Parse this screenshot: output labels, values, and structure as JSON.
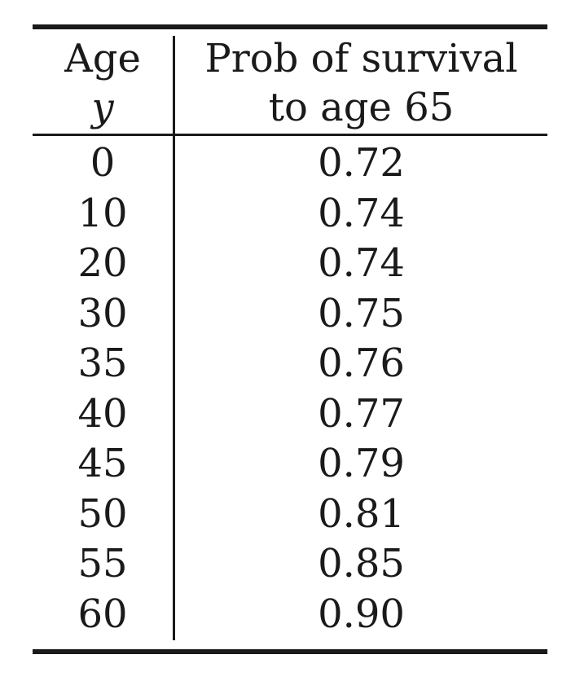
{
  "table": {
    "header": {
      "age_line1": "Age",
      "age_line2": "y",
      "prob_line1": "Prob of survival",
      "prob_line2": "to age 65"
    },
    "rows": [
      {
        "age": "0",
        "prob": "0.72"
      },
      {
        "age": "10",
        "prob": "0.74"
      },
      {
        "age": "20",
        "prob": "0.74"
      },
      {
        "age": "30",
        "prob": "0.75"
      },
      {
        "age": "35",
        "prob": "0.76"
      },
      {
        "age": "40",
        "prob": "0.77"
      },
      {
        "age": "45",
        "prob": "0.79"
      },
      {
        "age": "50",
        "prob": "0.81"
      },
      {
        "age": "55",
        "prob": "0.85"
      },
      {
        "age": "60",
        "prob": "0.90"
      }
    ]
  }
}
